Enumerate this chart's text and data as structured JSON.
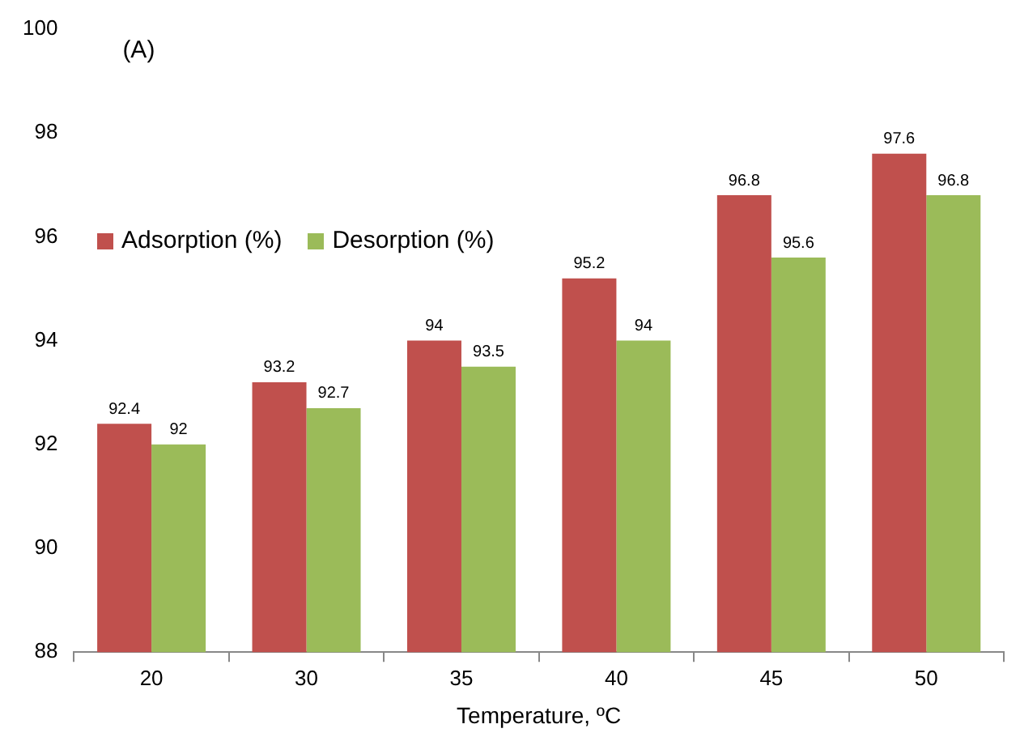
{
  "chart_data": {
    "type": "bar",
    "xlabel": "Temperature, ºC",
    "annotations": [
      "(A)"
    ],
    "categories": [
      "20",
      "30",
      "35",
      "40",
      "45",
      "50"
    ],
    "series": [
      {
        "name": "Adsorption (%)",
        "color": "#c0504d",
        "values": [
          92.4,
          93.2,
          94,
          95.2,
          96.8,
          97.6
        ]
      },
      {
        "name": "Desorption (%)",
        "color": "#9bbb59",
        "values": [
          92,
          92.7,
          93.5,
          94,
          95.6,
          96.8
        ]
      }
    ],
    "ylim": [
      88,
      100
    ],
    "yticks": [
      88,
      90,
      92,
      94,
      96,
      98,
      100
    ],
    "grid": false,
    "legend": "left",
    "data_labels": true
  }
}
